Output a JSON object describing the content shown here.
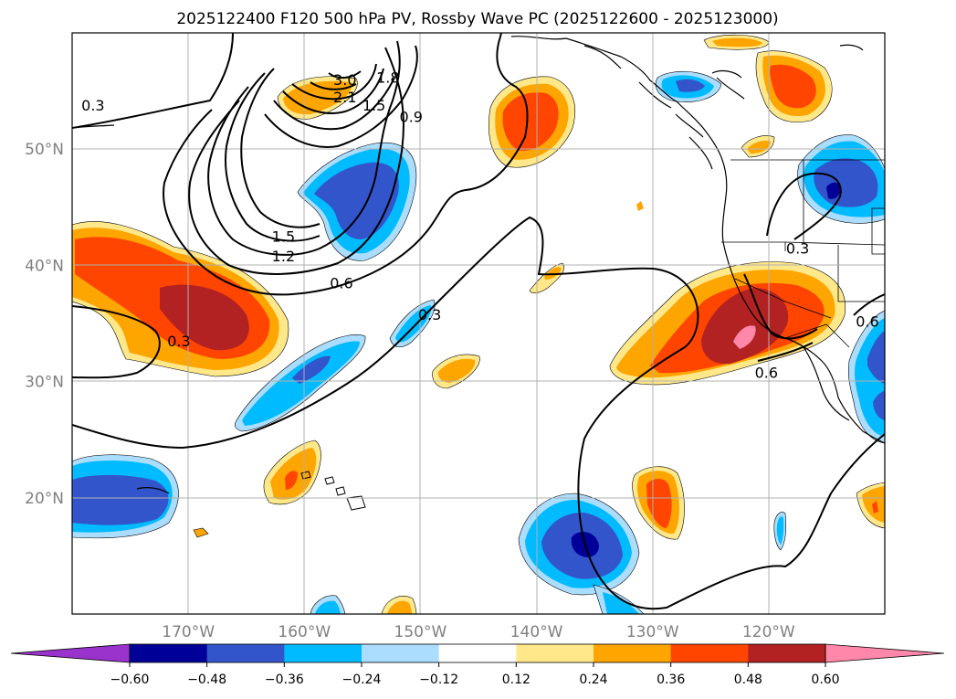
{
  "map": {
    "title": "2025122400 F120 500 hPa PV, Rossby Wave PC (2025122600 - 2025123000)",
    "extent": {
      "lon_min": -180,
      "lon_max": -110,
      "lat_min": 10,
      "lat_max": 60
    },
    "lat_ticks": [
      {
        "lat": 50,
        "label": "50°N"
      },
      {
        "lat": 40,
        "label": "40°N"
      },
      {
        "lat": 30,
        "label": "30°N"
      },
      {
        "lat": 20,
        "label": "20°N"
      }
    ],
    "lon_ticks": [
      {
        "lon": -170,
        "label": "170°W"
      },
      {
        "lon": -160,
        "label": "160°W"
      },
      {
        "lon": -150,
        "label": "150°W"
      },
      {
        "lon": -140,
        "label": "140°W"
      },
      {
        "lon": -130,
        "label": "130°W"
      },
      {
        "lon": -120,
        "label": "120°W"
      }
    ],
    "contour_labels": [
      {
        "text": "0.3",
        "lon": -178.2,
        "lat": 53.8
      },
      {
        "text": "3.0",
        "lon": -156.5,
        "lat": 56.0
      },
      {
        "text": "2.1",
        "lon": -156.5,
        "lat": 54.5
      },
      {
        "text": "1.8",
        "lon": -152.8,
        "lat": 56.2
      },
      {
        "text": "1.5",
        "lon": -154.0,
        "lat": 53.8
      },
      {
        "text": "0.9",
        "lon": -150.8,
        "lat": 52.8
      },
      {
        "text": "1.5",
        "lon": -161.8,
        "lat": 42.5
      },
      {
        "text": "1.2",
        "lon": -161.8,
        "lat": 40.8
      },
      {
        "text": "0.6",
        "lon": -156.8,
        "lat": 38.5
      },
      {
        "text": "0.3",
        "lon": -149.2,
        "lat": 35.8
      },
      {
        "text": "0.3",
        "lon": -170.8,
        "lat": 33.5
      },
      {
        "text": "0.3",
        "lon": -117.5,
        "lat": 41.5
      },
      {
        "text": "0.6",
        "lon": -120.2,
        "lat": 30.8
      },
      {
        "text": "0.6",
        "lon": -111.5,
        "lat": 35.2
      }
    ]
  },
  "colorbar": {
    "ticks": [
      "−0.60",
      "−0.48",
      "−0.36",
      "−0.24",
      "−0.12",
      "0.12",
      "0.24",
      "0.36",
      "0.48",
      "0.60"
    ],
    "colors": [
      "#9933cc",
      "#000099",
      "#3355cc",
      "#00bbff",
      "#aaddff",
      "#ffffff",
      "#ffe88a",
      "#ffa500",
      "#ff4500",
      "#b22222",
      "#ff88aa"
    ]
  }
}
